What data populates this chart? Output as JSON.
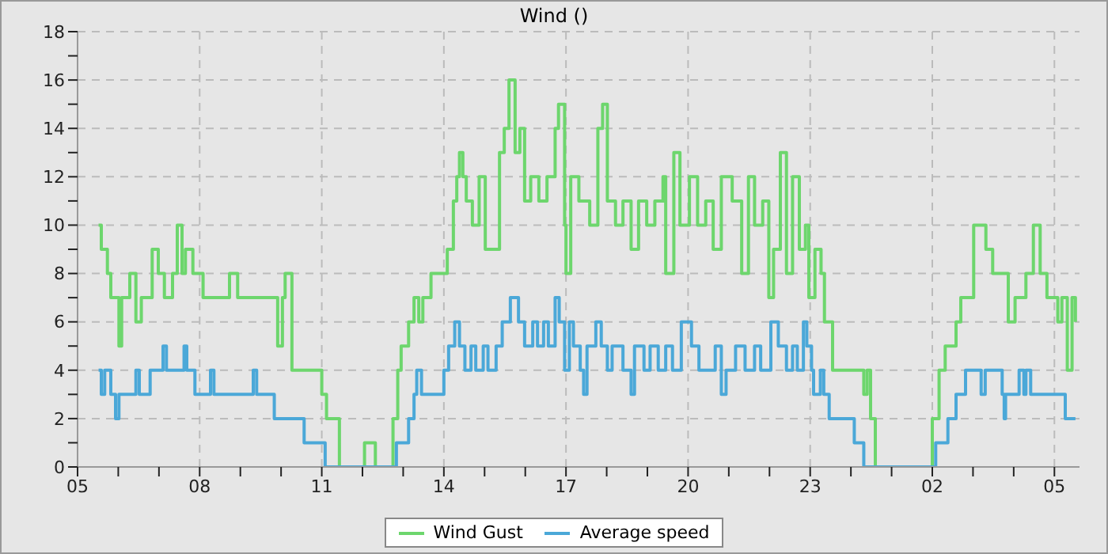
{
  "chart_data": {
    "type": "step",
    "title": "Wind ()",
    "xlim": [
      "--01-01T05:00",
      "--01-02T05:37"
    ],
    "ylim": [
      0,
      18
    ],
    "xticks": [
      {
        "value": "--01-01T05:00",
        "label": "05"
      },
      {
        "value": "--01-01T06:00",
        "label": null
      },
      {
        "value": "--01-01T07:00",
        "label": null
      },
      {
        "value": "--01-01T08:00",
        "label": "08"
      },
      {
        "value": "--01-01T09:00",
        "label": null
      },
      {
        "value": "--01-01T10:00",
        "label": null
      },
      {
        "value": "--01-01T11:00",
        "label": "11"
      },
      {
        "value": "--01-01T12:00",
        "label": null
      },
      {
        "value": "--01-01T13:00",
        "label": null
      },
      {
        "value": "--01-01T14:00",
        "label": "14"
      },
      {
        "value": "--01-01T15:00",
        "label": null
      },
      {
        "value": "--01-01T16:00",
        "label": null
      },
      {
        "value": "--01-01T17:00",
        "label": "17"
      },
      {
        "value": "--01-01T18:00",
        "label": null
      },
      {
        "value": "--01-01T19:00",
        "label": null
      },
      {
        "value": "--01-01T20:00",
        "label": "20"
      },
      {
        "value": "--01-01T21:00",
        "label": null
      },
      {
        "value": "--01-01T22:00",
        "label": null
      },
      {
        "value": "--01-01T23:00",
        "label": "23"
      },
      {
        "value": "--01-02T00:00",
        "label": null
      },
      {
        "value": "--01-02T01:00",
        "label": null
      },
      {
        "value": "--01-02T02:00",
        "label": "02"
      },
      {
        "value": "--01-02T03:00",
        "label": null
      },
      {
        "value": "--01-02T04:00",
        "label": null
      },
      {
        "value": "--01-02T05:00",
        "label": "05"
      }
    ],
    "yticks": [
      0,
      {
        "value": 1,
        "label": null
      },
      2,
      {
        "value": 3,
        "label": null
      },
      4,
      {
        "value": 5,
        "label": null
      },
      6,
      {
        "value": 7,
        "label": null
      },
      8,
      {
        "value": 9,
        "label": null
      },
      10,
      {
        "value": 11,
        "label": null
      },
      12,
      {
        "value": 13,
        "label": null
      },
      14,
      {
        "value": 15,
        "label": null
      },
      16,
      {
        "value": 17,
        "label": null
      },
      18
    ],
    "grid": true,
    "legend": "bottom",
    "marker": "none",
    "line_style": "solid",
    "series": [
      {
        "name": "Wind Gust",
        "color": "#6dd66d",
        "x": [
          "--01-01T05:31",
          "--01-01T05:35",
          "--01-01T05:44",
          "--01-01T05:49",
          "--01-01T06:01",
          "--01-01T06:05",
          "--01-01T06:17",
          "--01-01T06:26",
          "--01-01T06:34",
          "--01-01T06:50",
          "--01-01T06:59",
          "--01-01T07:08",
          "--01-01T07:20",
          "--01-01T07:27",
          "--01-01T07:34",
          "--01-01T07:39",
          "--01-01T07:50",
          "--01-01T08:05",
          "--01-01T08:44",
          "--01-01T08:56",
          "--01-01T09:55",
          "--01-01T10:02",
          "--01-01T10:06",
          "--01-01T10:16",
          "--01-01T11:00",
          "--01-01T11:07",
          "--01-01T11:26",
          "--01-01T12:03",
          "--01-01T12:19",
          "--01-01T12:45",
          "--01-01T12:52",
          "--01-01T12:57",
          "--01-01T13:08",
          "--01-01T13:16",
          "--01-01T13:23",
          "--01-01T13:29",
          "--01-01T13:41",
          "--01-01T14:05",
          "--01-01T14:14",
          "--01-01T14:19",
          "--01-01T14:23",
          "--01-01T14:28",
          "--01-01T14:33",
          "--01-01T14:42",
          "--01-01T14:52",
          "--01-01T15:01",
          "--01-01T15:22",
          "--01-01T15:29",
          "--01-01T15:36",
          "--01-01T15:45",
          "--01-01T15:52",
          "--01-01T15:59",
          "--01-01T16:08",
          "--01-01T16:20",
          "--01-01T16:32",
          "--01-01T16:44",
          "--01-01T16:49",
          "--01-01T16:58",
          "--01-01T17:00",
          "--01-01T17:07",
          "--01-01T17:19",
          "--01-01T17:35",
          "--01-01T17:47",
          "--01-01T17:54",
          "--01-01T18:01",
          "--01-01T18:13",
          "--01-01T18:24",
          "--01-01T18:36",
          "--01-01T18:47",
          "--01-01T18:59",
          "--01-01T19:11",
          "--01-01T19:23",
          "--01-01T19:27",
          "--01-01T19:39",
          "--01-01T19:48",
          "--01-01T20:02",
          "--01-01T20:14",
          "--01-01T20:26",
          "--01-01T20:37",
          "--01-01T20:49",
          "--01-01T21:05",
          "--01-01T21:19",
          "--01-01T21:29",
          "--01-01T21:38",
          "--01-01T21:50",
          "--01-01T21:59",
          "--01-01T22:06",
          "--01-01T22:16",
          "--01-01T22:25",
          "--01-01T22:34",
          "--01-01T22:44",
          "--01-01T22:53",
          "--01-01T22:58",
          "--01-01T23:07",
          "--01-01T23:16",
          "--01-01T23:21",
          "--01-01T23:33",
          "--01-02T00:19",
          "--01-02T00:24",
          "--01-02T00:29",
          "--01-02T00:36",
          "--01-02T02:00",
          "--01-02T02:10",
          "--01-02T02:19",
          "--01-02T02:35",
          "--01-02T02:42",
          "--01-02T03:01",
          "--01-02T03:19",
          "--01-02T03:29",
          "--01-02T03:52",
          "--01-02T04:02",
          "--01-02T04:18",
          "--01-02T04:29",
          "--01-02T04:39",
          "--01-02T04:49",
          "--01-02T05:05",
          "--01-02T05:11",
          "--01-02T05:19",
          "--01-02T05:26",
          "--01-02T05:31"
        ],
        "values": [
          10,
          9,
          8,
          7,
          5,
          7,
          8,
          6,
          7,
          9,
          8,
          7,
          8,
          10,
          8,
          9,
          8,
          7,
          8,
          7,
          5,
          7,
          8,
          4,
          3,
          2,
          0,
          1,
          0,
          2,
          4,
          5,
          6,
          7,
          6,
          7,
          8,
          9,
          11,
          12,
          13,
          12,
          11,
          10,
          12,
          9,
          13,
          14,
          16,
          13,
          14,
          11,
          12,
          11,
          12,
          14,
          15,
          10,
          8,
          12,
          11,
          10,
          14,
          15,
          11,
          10,
          11,
          9,
          11,
          10,
          11,
          12,
          8,
          13,
          10,
          12,
          10,
          11,
          9,
          12,
          11,
          8,
          12,
          10,
          11,
          7,
          9,
          13,
          8,
          12,
          9,
          10,
          7,
          9,
          8,
          6,
          4,
          3,
          4,
          2,
          0,
          2,
          4,
          5,
          6,
          7,
          10,
          9,
          8,
          6,
          7,
          8,
          10,
          8,
          7,
          6,
          7,
          4,
          7,
          6
        ]
      },
      {
        "name": "Average speed",
        "color": "#4ba8d8",
        "x": [
          "--01-01T05:31",
          "--01-01T05:35",
          "--01-01T05:40",
          "--01-01T05:49",
          "--01-01T05:56",
          "--01-01T06:01",
          "--01-01T06:26",
          "--01-01T06:31",
          "--01-01T06:47",
          "--01-01T07:06",
          "--01-01T07:11",
          "--01-01T07:37",
          "--01-01T07:41",
          "--01-01T07:53",
          "--01-01T08:16",
          "--01-01T08:21",
          "--01-01T09:19",
          "--01-01T09:24",
          "--01-01T09:50",
          "--01-01T10:34",
          "--01-01T11:05",
          "--01-01T12:50",
          "--01-01T13:08",
          "--01-01T13:16",
          "--01-01T13:20",
          "--01-01T13:27",
          "--01-01T14:00",
          "--01-01T14:07",
          "--01-01T14:16",
          "--01-01T14:23",
          "--01-01T14:31",
          "--01-01T14:40",
          "--01-01T14:47",
          "--01-01T14:58",
          "--01-01T15:05",
          "--01-01T15:17",
          "--01-01T15:26",
          "--01-01T15:38",
          "--01-01T15:50",
          "--01-01T15:59",
          "--01-01T16:11",
          "--01-01T16:18",
          "--01-01T16:27",
          "--01-01T16:34",
          "--01-01T16:44",
          "--01-01T16:50",
          "--01-01T16:58",
          "--01-01T17:05",
          "--01-01T17:11",
          "--01-01T17:21",
          "--01-01T17:26",
          "--01-01T17:31",
          "--01-01T17:44",
          "--01-01T17:52",
          "--01-01T18:01",
          "--01-01T18:08",
          "--01-01T18:24",
          "--01-01T18:36",
          "--01-01T18:41",
          "--01-01T18:55",
          "--01-01T19:04",
          "--01-01T19:16",
          "--01-01T19:27",
          "--01-01T19:37",
          "--01-01T19:50",
          "--01-01T20:05",
          "--01-01T20:16",
          "--01-01T20:40",
          "--01-01T20:49",
          "--01-01T20:56",
          "--01-01T21:10",
          "--01-01T21:24",
          "--01-01T21:38",
          "--01-01T21:47",
          "--01-01T22:02",
          "--01-01T22:13",
          "--01-01T22:25",
          "--01-01T22:34",
          "--01-01T22:41",
          "--01-01T22:50",
          "--01-01T22:55",
          "--01-01T23:02",
          "--01-01T23:05",
          "--01-01T23:15",
          "--01-01T23:20",
          "--01-01T23:28",
          "--01-02T00:05",
          "--01-02T00:19",
          "--01-02T02:05",
          "--01-02T02:23",
          "--01-02T02:35",
          "--01-02T02:49",
          "--01-02T03:12",
          "--01-02T03:18",
          "--01-02T03:43",
          "--01-02T03:46",
          "--01-02T03:48",
          "--01-02T04:08",
          "--01-02T04:15",
          "--01-02T04:18",
          "--01-02T04:25",
          "--01-02T05:16",
          "--01-02T05:31"
        ],
        "values": [
          4,
          3,
          4,
          3,
          2,
          3,
          4,
          3,
          4,
          5,
          4,
          5,
          4,
          3,
          4,
          3,
          4,
          3,
          2,
          1,
          0,
          1,
          2,
          3,
          4,
          3,
          4,
          5,
          6,
          5,
          4,
          5,
          4,
          5,
          4,
          5,
          6,
          7,
          6,
          5,
          6,
          5,
          6,
          5,
          7,
          6,
          4,
          6,
          5,
          4,
          3,
          5,
          6,
          5,
          4,
          5,
          4,
          3,
          5,
          4,
          5,
          4,
          5,
          4,
          6,
          5,
          4,
          5,
          3,
          4,
          5,
          4,
          5,
          4,
          6,
          5,
          4,
          5,
          4,
          6,
          5,
          4,
          3,
          4,
          3,
          2,
          1,
          0,
          1,
          2,
          3,
          4,
          3,
          4,
          3,
          2,
          3,
          4,
          3,
          4,
          3,
          2,
          2
        ]
      }
    ]
  }
}
